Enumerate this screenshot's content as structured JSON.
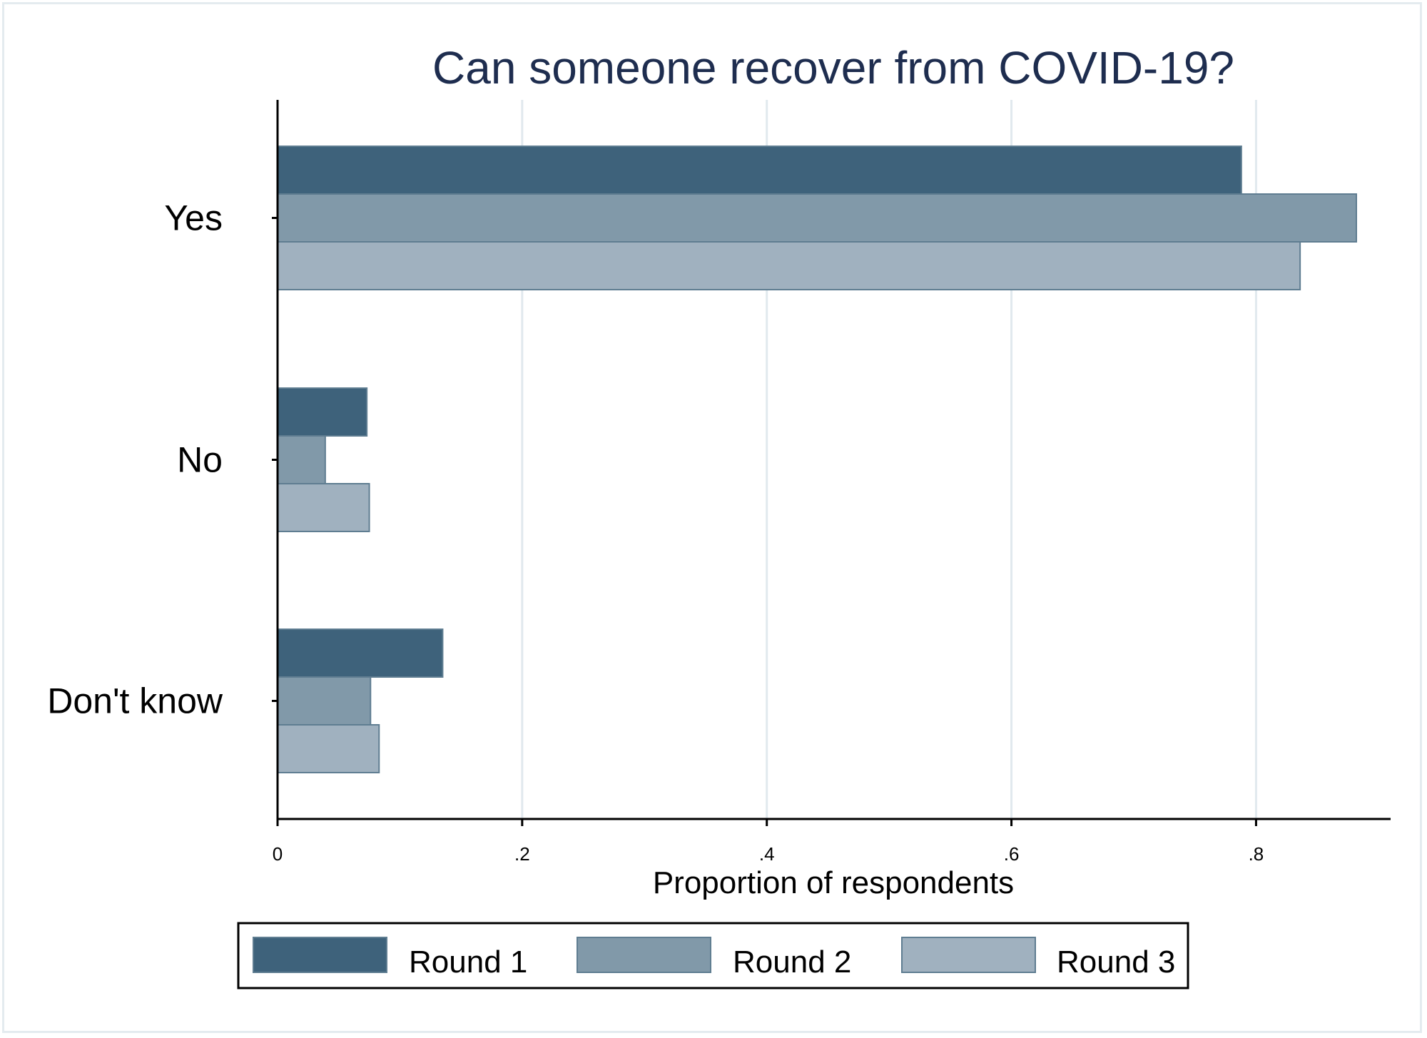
{
  "chart_data": {
    "type": "bar",
    "orientation": "horizontal",
    "title": "Can someone recover from COVID-19?",
    "xlabel": "Proportion of respondents",
    "ylabel": "",
    "categories": [
      "Yes",
      "No",
      "Don't know"
    ],
    "series": [
      {
        "name": "Round 1",
        "values": [
          0.788,
          0.073,
          0.135
        ],
        "color": "#3e627b"
      },
      {
        "name": "Round 2",
        "values": [
          0.882,
          0.039,
          0.076
        ],
        "color": "#8199a9"
      },
      {
        "name": "Round 3",
        "values": [
          0.836,
          0.075,
          0.083
        ],
        "color": "#a0b1bf"
      }
    ],
    "xlim": [
      0,
      0.91
    ],
    "xticks": [
      0,
      0.2,
      0.4,
      0.6,
      0.8
    ],
    "xtick_labels": [
      "0",
      ".2",
      ".4",
      ".6",
      ".8"
    ],
    "grid": true,
    "legend_position": "bottom"
  }
}
